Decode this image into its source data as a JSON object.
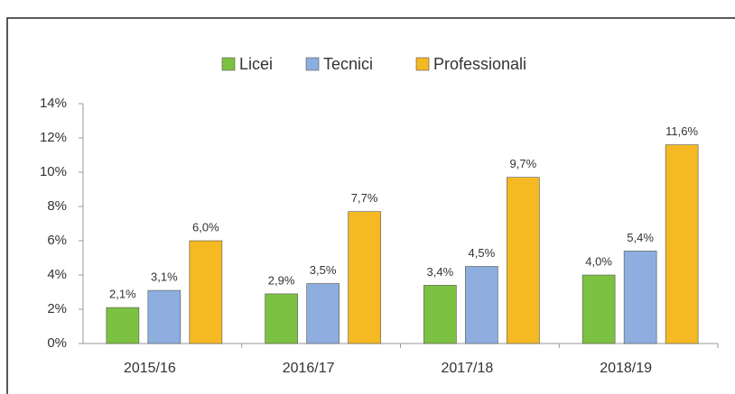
{
  "chart_data": {
    "type": "bar",
    "categories": [
      "2015/16",
      "2016/17",
      "2017/18",
      "2018/19"
    ],
    "series": [
      {
        "name": "Licei",
        "color": "#7cc142",
        "values": [
          2.1,
          2.9,
          3.4,
          4.0
        ],
        "value_labels": [
          "2,1%",
          "2,9%",
          "3,4%",
          "4,0%"
        ]
      },
      {
        "name": "Tecnici",
        "color": "#8daede",
        "values": [
          3.1,
          3.5,
          4.5,
          5.4
        ],
        "value_labels": [
          "3,1%",
          "3,5%",
          "4,5%",
          "5,4%"
        ]
      },
      {
        "name": "Professionali",
        "color": "#f5b923",
        "values": [
          6.0,
          7.7,
          9.7,
          11.6
        ],
        "value_labels": [
          "6,0%",
          "7,7%",
          "9,7%",
          "11,6%"
        ]
      }
    ],
    "ylim": [
      0,
      14
    ],
    "yticks": [
      {
        "value": 0,
        "label": "0%"
      },
      {
        "value": 2,
        "label": "2%"
      },
      {
        "value": 4,
        "label": "4%"
      },
      {
        "value": 6,
        "label": "6%"
      },
      {
        "value": 8,
        "label": "8%"
      },
      {
        "value": 10,
        "label": "10%"
      },
      {
        "value": 12,
        "label": "12%"
      },
      {
        "value": 14,
        "label": "14%"
      }
    ],
    "legend": "top"
  }
}
